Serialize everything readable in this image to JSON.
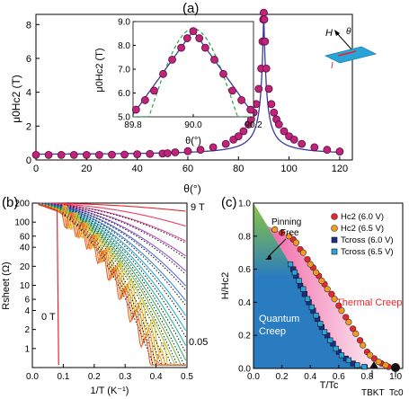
{
  "panel_a": {
    "label": "(a)",
    "ylabel": "μ0Hc2 (T)",
    "xlabel": "θ(°)",
    "inset": {
      "ylabel": "μ0Hc2 (T)",
      "xlabel": "θ(°)"
    },
    "schematic": {
      "field": "H",
      "angle": "θ",
      "current": "I"
    }
  },
  "panel_b": {
    "label": "(b)",
    "ylabel": "Rsheet (Ω)",
    "xlabel": "1/T (K⁻¹)",
    "top_field": "9 T",
    "zero_field": "0 T",
    "bottom_field": "0.05"
  },
  "panel_c": {
    "label": "(c)",
    "ylabel": "H/Hc2",
    "xlabel": "T/Tc",
    "region_pinning": "Pinning Free",
    "region_thermal": "Thermal Creep",
    "region_quantum": "Quantum Creep",
    "tbkt": "TBKT",
    "tc0": "Tc0"
  },
  "colors": {
    "magenta_marker": "#c0237a",
    "hc2_6v": "#e8262b",
    "hc2_65v": "#f19a1f",
    "tcross_6v": "#1f2d8a",
    "tcross_65v": "#2aa4d8",
    "quantum_blue": "#2a7cc0",
    "thermal_pink": "#f06aa8",
    "pinning_green": "#8cc63f"
  },
  "chart_data": [
    {
      "type": "scatter",
      "title": "",
      "xlabel": "θ(°)",
      "ylabel": "μ0Hc2 (T)",
      "xlim": [
        0,
        125
      ],
      "ylim": [
        0,
        8.6
      ],
      "xticks": [
        0,
        20,
        40,
        60,
        80,
        100,
        120
      ],
      "yticks": [
        0,
        2,
        4,
        6,
        8
      ],
      "series": [
        {
          "points": [
            [
              0,
              0.3
            ],
            [
              5,
              0.3
            ],
            [
              10,
              0.3
            ],
            [
              15,
              0.3
            ],
            [
              20,
              0.3
            ],
            [
              25,
              0.3
            ],
            [
              30,
              0.31
            ],
            [
              35,
              0.32
            ],
            [
              40,
              0.34
            ],
            [
              45,
              0.36
            ],
            [
              50,
              0.38
            ],
            [
              52,
              0.4
            ],
            [
              55,
              0.45
            ],
            [
              60,
              0.52
            ],
            [
              65,
              0.6
            ],
            [
              70,
              0.75
            ],
            [
              75,
              0.95
            ],
            [
              78,
              1.2
            ],
            [
              80,
              1.4
            ],
            [
              82,
              1.7
            ],
            [
              84,
              2.1
            ],
            [
              85,
              2.4
            ],
            [
              86,
              2.8
            ],
            [
              87,
              3.3
            ],
            [
              88,
              4.2
            ],
            [
              89,
              5.4
            ],
            [
              89.5,
              7.0
            ],
            [
              89.8,
              8.3
            ],
            [
              90,
              8.7
            ],
            [
              90.2,
              8.3
            ],
            [
              90.5,
              7.0
            ],
            [
              91,
              5.4
            ],
            [
              92,
              4.2
            ],
            [
              93,
              3.3
            ],
            [
              94,
              2.8
            ],
            [
              95,
              2.4
            ],
            [
              96,
              2.1
            ],
            [
              98,
              1.7
            ],
            [
              100,
              1.4
            ],
            [
              102,
              1.2
            ],
            [
              105,
              0.95
            ],
            [
              110,
              0.75
            ],
            [
              115,
              0.6
            ],
            [
              120,
              0.5
            ]
          ]
        }
      ]
    },
    {
      "type": "scatter",
      "title": "",
      "xlabel": "θ(°)",
      "ylabel": "μ0Hc2 (T)",
      "xlim": [
        89.8,
        90.2
      ],
      "ylim": [
        5.0,
        9.0
      ],
      "xticks": [
        89.8,
        90.0,
        90.2
      ],
      "yticks": [
        5.0,
        6.0,
        7.0,
        8.0,
        9.0
      ],
      "series": [
        {
          "points": [
            [
              89.81,
              5.3
            ],
            [
              89.84,
              5.7
            ],
            [
              89.87,
              6.1
            ],
            [
              89.9,
              6.8
            ],
            [
              89.93,
              7.4
            ],
            [
              89.96,
              7.9
            ],
            [
              89.98,
              8.3
            ],
            [
              90.0,
              8.6
            ],
            [
              90.02,
              8.3
            ],
            [
              90.04,
              7.9
            ],
            [
              90.07,
              7.4
            ],
            [
              90.1,
              6.8
            ],
            [
              90.13,
              6.1
            ],
            [
              90.16,
              5.7
            ],
            [
              90.19,
              5.3
            ]
          ]
        }
      ]
    },
    {
      "type": "line",
      "title": "",
      "xlabel": "1/T (K⁻¹)",
      "ylabel": "Rsheet (Ω)",
      "xlim": [
        0,
        0.5
      ],
      "ylim": [
        0.5,
        200
      ],
      "yscale": "log",
      "xticks": [
        0.0,
        0.1,
        0.2,
        0.3,
        0.4,
        0.5
      ],
      "yticks": [
        1,
        2,
        4,
        6,
        10,
        20,
        40,
        60,
        100,
        200
      ]
    },
    {
      "type": "scatter",
      "title": "",
      "xlabel": "T/Tc",
      "ylabel": "H/Hc2",
      "xlim": [
        0,
        1.05
      ],
      "ylim": [
        0,
        1.0
      ],
      "xticks": [
        0.0,
        0.2,
        0.4,
        0.6,
        0.8,
        1.0
      ],
      "yticks": [
        0.0,
        0.2,
        0.4,
        0.6,
        0.8,
        1.0
      ],
      "legend_position": "top-right",
      "series": [
        {
          "name": "Hc2 (6.0 V)",
          "points": [
            [
              0.2,
              0.82
            ],
            [
              0.28,
              0.78
            ],
            [
              0.33,
              0.72
            ],
            [
              0.38,
              0.66
            ],
            [
              0.42,
              0.61
            ],
            [
              0.46,
              0.56
            ],
            [
              0.5,
              0.51
            ],
            [
              0.55,
              0.45
            ],
            [
              0.6,
              0.38
            ],
            [
              0.65,
              0.31
            ],
            [
              0.7,
              0.24
            ],
            [
              0.75,
              0.17
            ],
            [
              0.8,
              0.1
            ],
            [
              0.85,
              0.06
            ],
            [
              0.9,
              0.03
            ],
            [
              0.95,
              0.01
            ],
            [
              1.0,
              0.0
            ]
          ]
        },
        {
          "name": "Hc2 (6.5 V)",
          "points": [
            [
              0.15,
              0.84
            ],
            [
              0.25,
              0.8
            ],
            [
              0.3,
              0.76
            ],
            [
              0.35,
              0.7
            ],
            [
              0.4,
              0.63
            ],
            [
              0.44,
              0.58
            ],
            [
              0.48,
              0.53
            ],
            [
              0.52,
              0.48
            ],
            [
              0.57,
              0.42
            ],
            [
              0.62,
              0.35
            ],
            [
              0.67,
              0.28
            ],
            [
              0.72,
              0.21
            ],
            [
              0.77,
              0.14
            ],
            [
              0.82,
              0.08
            ],
            [
              0.88,
              0.04
            ],
            [
              0.93,
              0.02
            ]
          ]
        },
        {
          "name": "Tcross (6.0 V)",
          "points": [
            [
              0.28,
              0.6
            ],
            [
              0.3,
              0.56
            ],
            [
              0.33,
              0.5
            ],
            [
              0.36,
              0.45
            ],
            [
              0.39,
              0.4
            ],
            [
              0.42,
              0.35
            ],
            [
              0.45,
              0.3
            ],
            [
              0.48,
              0.25
            ],
            [
              0.52,
              0.2
            ],
            [
              0.56,
              0.15
            ],
            [
              0.6,
              0.1
            ],
            [
              0.65,
              0.06
            ],
            [
              0.7,
              0.03
            ]
          ]
        },
        {
          "name": "Tcross (6.5 V)",
          "points": [
            [
              0.26,
              0.63
            ],
            [
              0.29,
              0.58
            ],
            [
              0.32,
              0.53
            ],
            [
              0.35,
              0.48
            ],
            [
              0.38,
              0.42
            ],
            [
              0.41,
              0.37
            ],
            [
              0.44,
              0.32
            ],
            [
              0.47,
              0.27
            ],
            [
              0.5,
              0.22
            ],
            [
              0.54,
              0.17
            ],
            [
              0.58,
              0.12
            ],
            [
              0.62,
              0.08
            ],
            [
              0.67,
              0.05
            ],
            [
              0.73,
              0.02
            ],
            [
              0.78,
              0.01
            ]
          ]
        }
      ]
    }
  ]
}
